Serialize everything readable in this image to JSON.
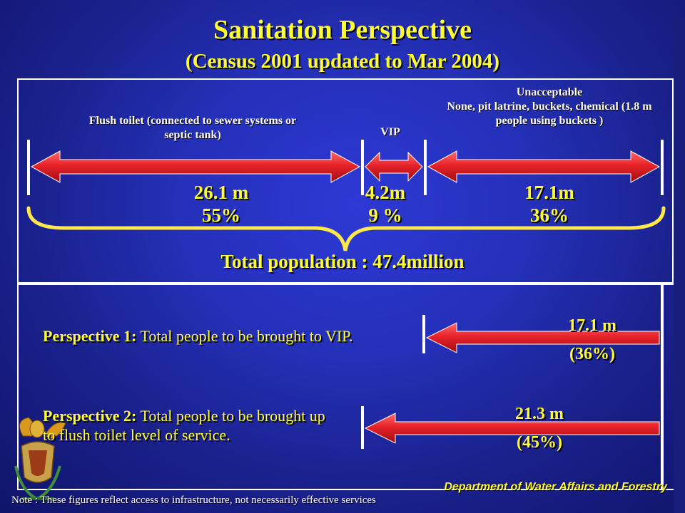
{
  "title": "Sanitation Perspective",
  "subtitle": "(Census 2001 updated to Mar 2004)",
  "segments": [
    {
      "caption": "Flush toilet (connected to sewer systems or septic tank)",
      "amount": "26.1 m",
      "percent": "55%"
    },
    {
      "caption": "VIP",
      "amount": "4.2m",
      "percent": "9 %"
    },
    {
      "caption_line1": "Unacceptable",
      "caption_line2": "None, pit latrine, buckets, chemical (1.8 m people using buckets )",
      "amount": "17.1m",
      "percent": "36%"
    }
  ],
  "total": "Total population : 47.4million",
  "perspectives": [
    {
      "label": "Perspective 1:",
      "text": "Total people to be brought to VIP.",
      "amount": "17.1 m",
      "percent": "(36%)"
    },
    {
      "label": "Perspective 2:",
      "text": "Total people to be brought up to flush toilet level of service.",
      "amount": "21.3 m",
      "percent": "(45%)"
    }
  ],
  "department": "Department of Water Affairs and Forestry",
  "note": "Note : These figures reflect access to infrastructure, not necessarily effective services",
  "colors": {
    "arrow": "#e8232a",
    "accent": "#ffff33",
    "brace": "#ffe84a",
    "background": "#2430b8"
  }
}
